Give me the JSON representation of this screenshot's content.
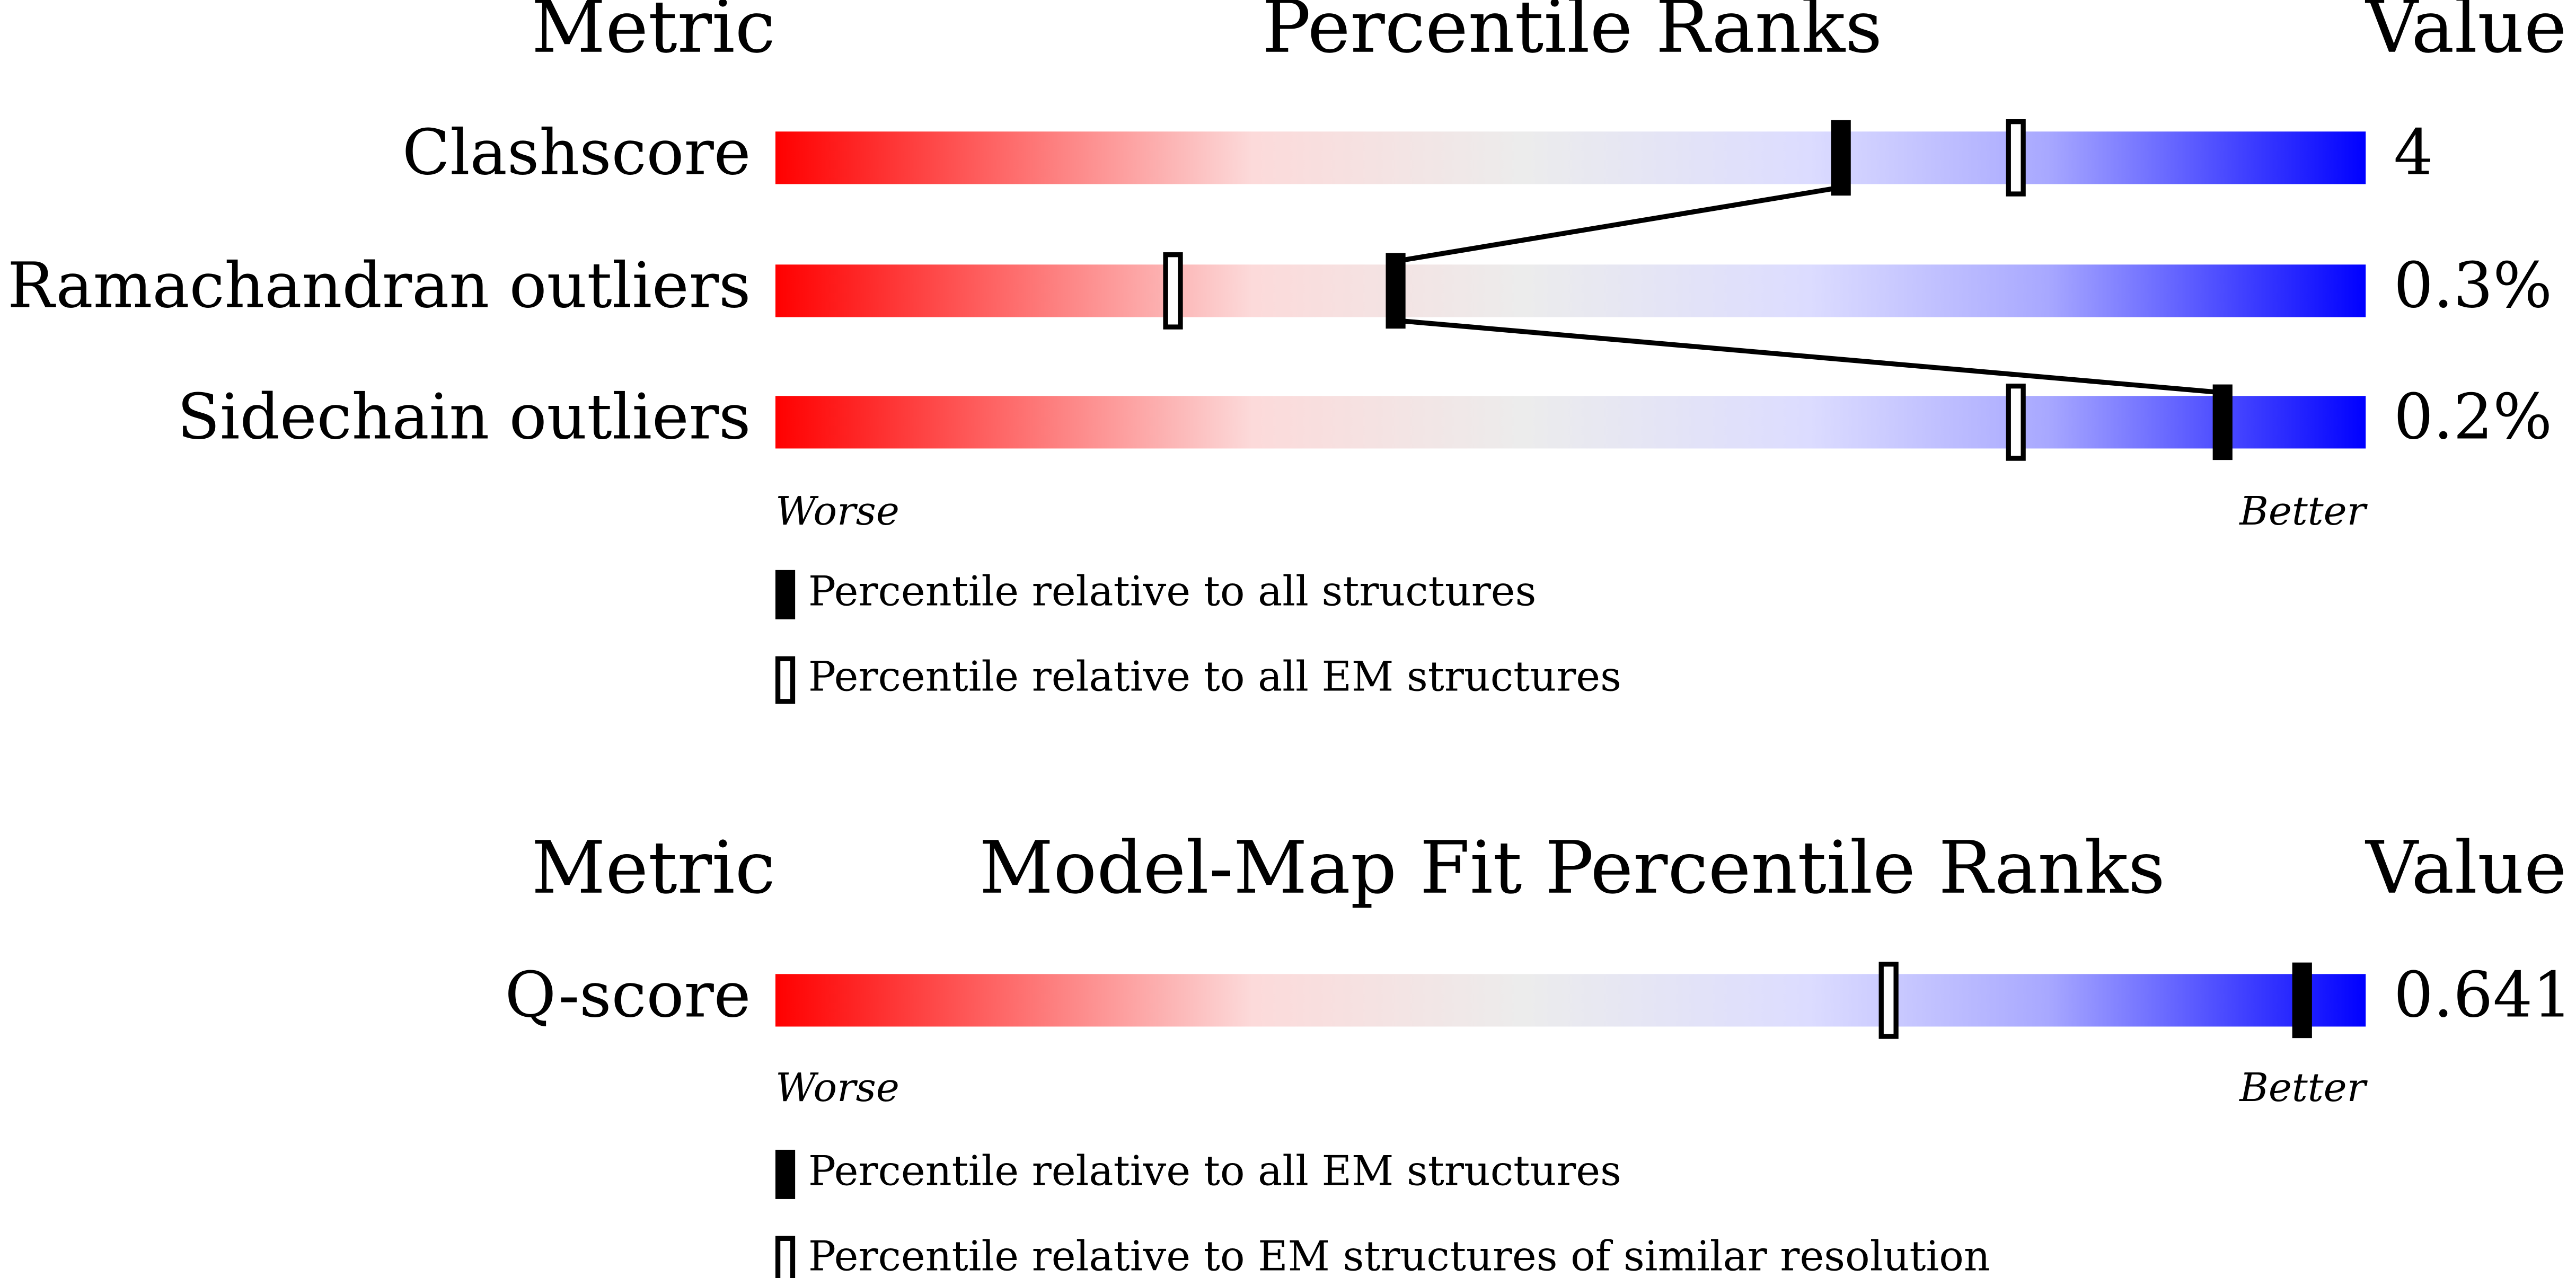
{
  "xlim": [
    0,
    100
  ],
  "panels": [
    {
      "header": {
        "metric": "Metric",
        "title": "Percentile Ranks",
        "value": "Value"
      },
      "rows": [
        {
          "metric": "Clashscore",
          "value": "4",
          "percentile_all": 67,
          "percentile_em": 78
        },
        {
          "metric": "Ramachandran outliers",
          "value": "0.3%",
          "percentile_all": 39,
          "percentile_em": 25
        },
        {
          "metric": "Sidechain outliers",
          "value": "0.2%",
          "percentile_all": 91,
          "percentile_em": 78
        }
      ],
      "scale": {
        "worse": "Worse",
        "better": "Better"
      },
      "legend": {
        "filled": "Percentile relative to all structures",
        "open": "Percentile relative to all EM structures"
      }
    },
    {
      "header": {
        "metric": "Metric",
        "title": "Model-Map Fit Percentile Ranks",
        "value": "Value"
      },
      "rows": [
        {
          "metric": "Q-score",
          "value": "0.641",
          "percentile_all": 96,
          "percentile_em": 70
        }
      ],
      "scale": {
        "worse": "Worse",
        "better": "Better"
      },
      "legend": {
        "filled": "Percentile relative to all EM structures",
        "open": "Percentile relative to EM structures of similar resolution"
      }
    }
  ]
}
